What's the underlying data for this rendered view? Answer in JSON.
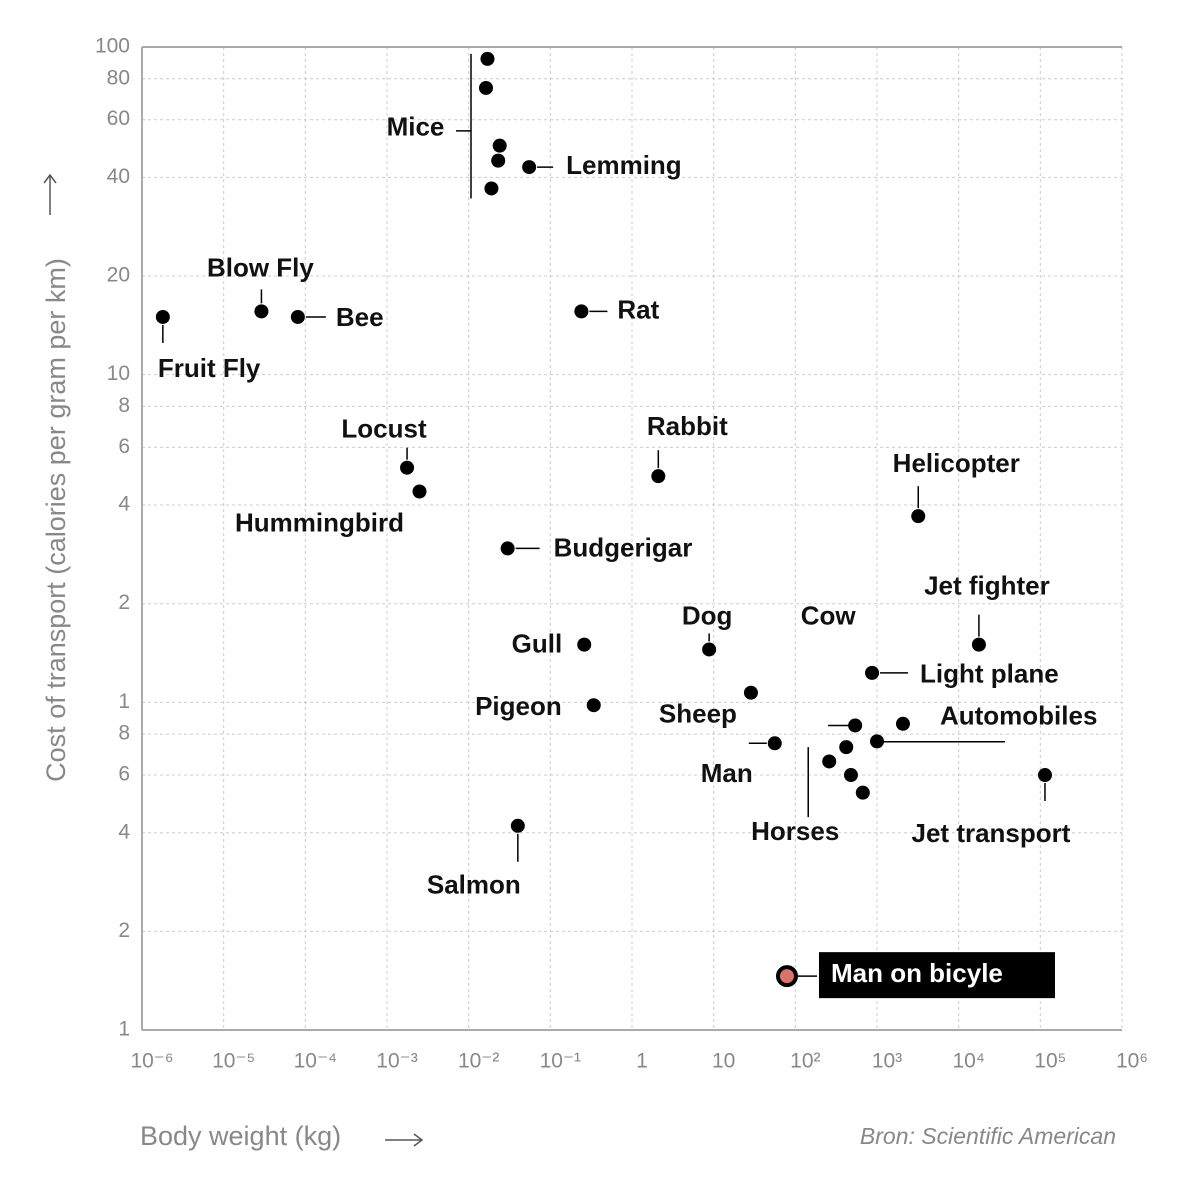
{
  "chart_data": {
    "type": "scatter",
    "ylabel": "Cost of transport (calories per gram per km)",
    "xlabel": "Body weight (kg)",
    "source": "Bron: Scientific American",
    "xscale": "log",
    "yscale": "log",
    "grid": true,
    "xlim": [
      1e-06,
      1000000
    ],
    "ylim": [
      0.1,
      100
    ],
    "xticks": [
      {
        "value": 1e-06,
        "label": "10⁻⁶"
      },
      {
        "value": 1e-05,
        "label": "10⁻⁵"
      },
      {
        "value": 0.0001,
        "label": "10⁻⁴"
      },
      {
        "value": 0.001,
        "label": "10⁻³"
      },
      {
        "value": 0.01,
        "label": "10⁻²"
      },
      {
        "value": 0.1,
        "label": "10⁻¹"
      },
      1,
      10,
      {
        "value": 100,
        "label": "10²"
      },
      {
        "value": 1000,
        "label": "10³"
      },
      {
        "value": 10000,
        "label": "10⁴"
      },
      {
        "value": 100000,
        "label": "10⁵"
      },
      {
        "value": 1000000,
        "label": "10⁶"
      }
    ],
    "yticks": [
      100,
      80,
      60,
      40,
      20,
      10,
      8,
      6,
      4,
      2,
      1,
      {
        "value": 0.8,
        "label": "8"
      },
      {
        "value": 0.6,
        "label": "6"
      },
      {
        "value": 0.4,
        "label": "4"
      },
      {
        "value": 0.2,
        "label": "2"
      },
      {
        "value": 0.1,
        "label": "1"
      }
    ],
    "series": [
      {
        "name": "Mice",
        "color": "#000000",
        "x": [
          0.017,
          0.0163,
          0.024,
          0.023,
          0.019
        ],
        "y": [
          92,
          75,
          50,
          45,
          37
        ]
      },
      {
        "name": "Lemming",
        "color": "#000000",
        "x": [
          0.055
        ],
        "y": [
          43
        ]
      },
      {
        "name": "Rat",
        "color": "#000000",
        "x": [
          0.24
        ],
        "y": [
          15.6
        ]
      },
      {
        "name": "Fruit Fly",
        "color": "#000000",
        "x": [
          1.8e-06
        ],
        "y": [
          15
        ]
      },
      {
        "name": "Blow Fly",
        "color": "#000000",
        "x": [
          2.9e-05
        ],
        "y": [
          15.6
        ]
      },
      {
        "name": "Bee",
        "color": "#000000",
        "x": [
          8.1e-05
        ],
        "y": [
          15
        ]
      },
      {
        "name": "Locust",
        "color": "#000000",
        "x": [
          0.00176
        ],
        "y": [
          5.2
        ]
      },
      {
        "name": "Hummingbird",
        "color": "#000000",
        "x": [
          0.0025
        ],
        "y": [
          4.4
        ]
      },
      {
        "name": "Rabbit",
        "color": "#000000",
        "x": [
          2.1
        ],
        "y": [
          4.9
        ]
      },
      {
        "name": "Helicopter",
        "color": "#000000",
        "x": [
          3200
        ],
        "y": [
          3.7
        ]
      },
      {
        "name": "Budgerigar",
        "color": "#000000",
        "x": [
          0.03
        ],
        "y": [
          2.95
        ]
      },
      {
        "name": "Jet fighter",
        "color": "#000000",
        "x": [
          17700
        ],
        "y": [
          1.5
        ]
      },
      {
        "name": "Gull",
        "color": "#000000",
        "x": [
          0.26
        ],
        "y": [
          1.5
        ]
      },
      {
        "name": "Dog",
        "color": "#000000",
        "x": [
          8.8
        ],
        "y": [
          1.45
        ]
      },
      {
        "name": "Light plane",
        "color": "#000000",
        "x": [
          870
        ],
        "y": [
          1.23
        ]
      },
      {
        "name": "Sheep",
        "color": "#000000",
        "x": [
          28.6
        ],
        "y": [
          1.07
        ]
      },
      {
        "name": "Pigeon",
        "color": "#000000",
        "x": [
          0.34
        ],
        "y": [
          0.98
        ]
      },
      {
        "name": "Cow",
        "color": "#000000",
        "x": [
          540
        ],
        "y": [
          0.85
        ]
      },
      {
        "name": "Automobiles",
        "color": "#000000",
        "x": [
          2080,
          1000
        ],
        "y": [
          0.86,
          0.76
        ]
      },
      {
        "name": "Man",
        "color": "#000000",
        "x": [
          56
        ],
        "y": [
          0.75
        ]
      },
      {
        "name": "Horses",
        "color": "#000000",
        "x": [
          420,
          260,
          480,
          670
        ],
        "y": [
          0.73,
          0.66,
          0.6,
          0.53
        ]
      },
      {
        "name": "Jet transport",
        "color": "#000000",
        "x": [
          114000
        ],
        "y": [
          0.6
        ]
      },
      {
        "name": "Salmon",
        "color": "#000000",
        "x": [
          0.04
        ],
        "y": [
          0.42
        ]
      },
      {
        "name": "Man on bicyle",
        "color": "#d9736b",
        "x": [
          79
        ],
        "y": [
          0.146
        ]
      }
    ]
  }
}
